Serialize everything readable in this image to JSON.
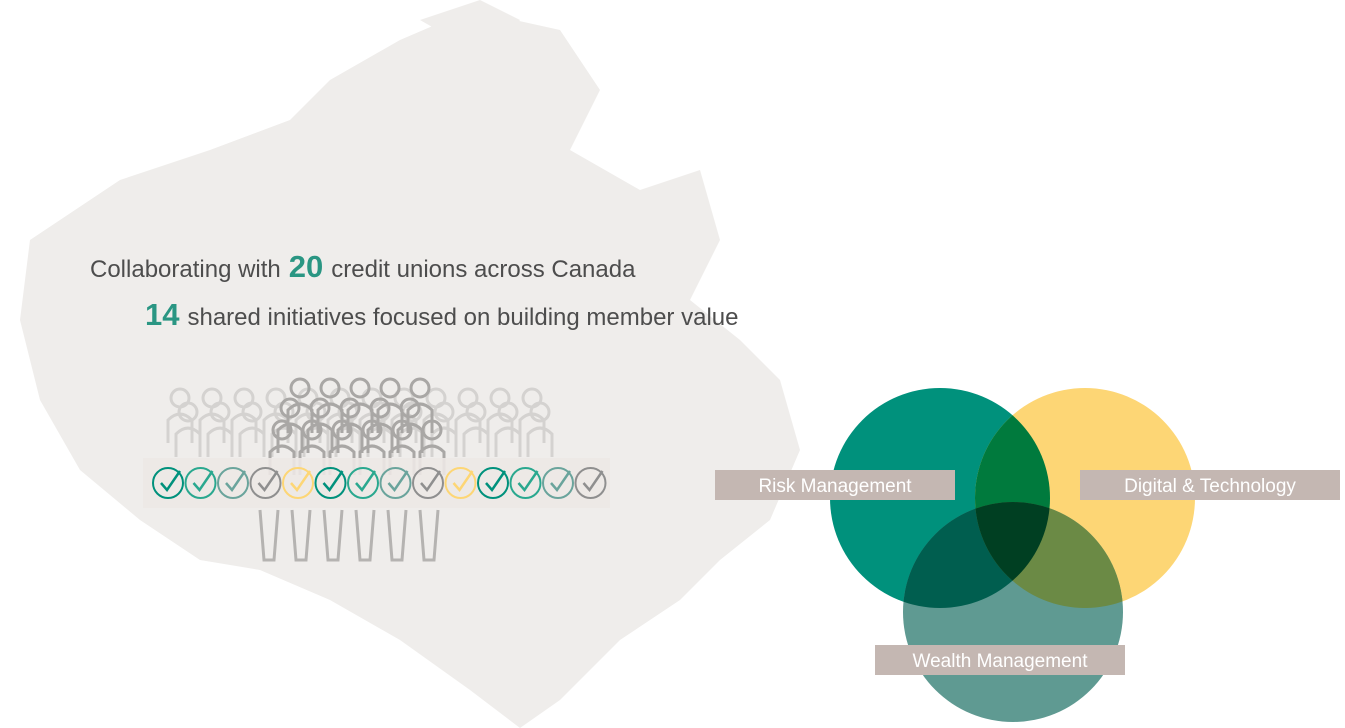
{
  "headline": {
    "line1": {
      "before": "Collaborating with",
      "number": "20",
      "after": "credit unions across Canada"
    },
    "line2": {
      "number": "14",
      "after": "shared initiatives focused on building member value"
    }
  },
  "venn": {
    "labels": [
      "Risk Management",
      "Digital & Technology",
      "Wealth Management"
    ]
  }
}
